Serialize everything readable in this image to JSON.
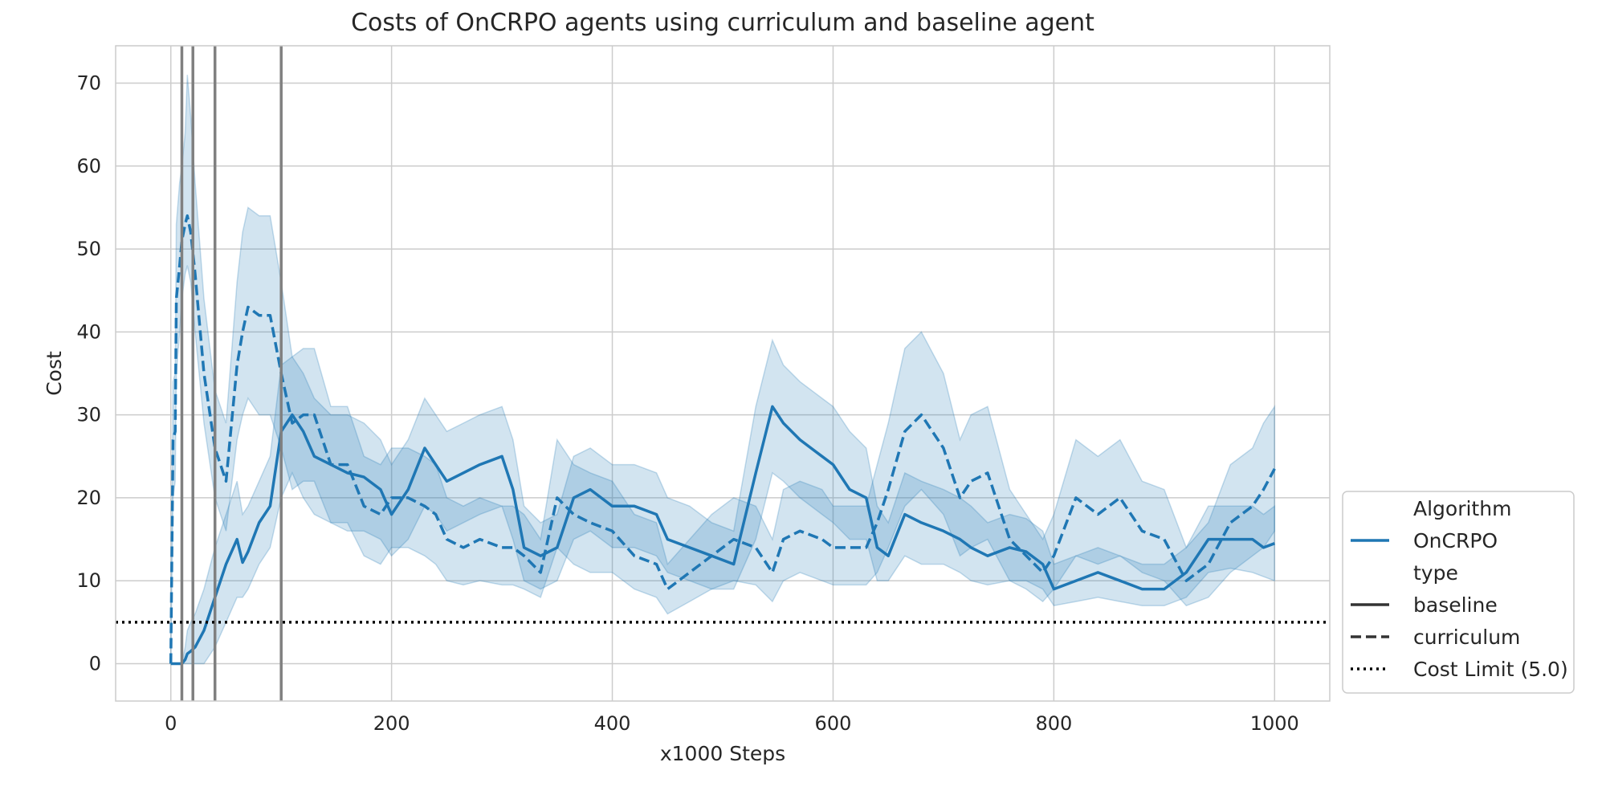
{
  "chart_data": {
    "type": "line",
    "title": "Costs of OnCRPO agents using curriculum and baseline agent",
    "xlabel": "x1000 Steps",
    "ylabel": "Cost",
    "xlim": [
      -50,
      1050
    ],
    "ylim": [
      -4.5,
      74.5
    ],
    "xticks": [
      0,
      200,
      400,
      600,
      800,
      1000
    ],
    "yticks": [
      0,
      10,
      20,
      30,
      40,
      50,
      60,
      70
    ],
    "grid": true,
    "legend_position": "lower-right",
    "colors": {
      "series": "#1f77b4",
      "band": "#1f77b4",
      "stage_line": "#808080",
      "limit": "#000000"
    },
    "stage_lines_x": [
      10,
      20,
      40,
      100
    ],
    "cost_limit": {
      "label": "Cost Limit (5.0)",
      "value": 5.0
    },
    "legend": {
      "algorithm_title": "Algorithm",
      "algorithm_entry": "OnCRPO",
      "type_title": "type",
      "baseline_label": "baseline",
      "curriculum_label": "curriculum"
    },
    "series": [
      {
        "name": "baseline",
        "style": "solid",
        "x": [
          0,
          2,
          4,
          5,
          8,
          10,
          13,
          15,
          18,
          22,
          30,
          40,
          50,
          60,
          65,
          70,
          80,
          90,
          100,
          110,
          120,
          130,
          145,
          160,
          175,
          190,
          200,
          215,
          230,
          240,
          250,
          265,
          280,
          300,
          310,
          320,
          335,
          350,
          365,
          380,
          400,
          420,
          440,
          450,
          470,
          490,
          510,
          530,
          545,
          555,
          570,
          590,
          600,
          615,
          630,
          640,
          650,
          665,
          680,
          700,
          715,
          725,
          740,
          760,
          775,
          790,
          800,
          820,
          840,
          860,
          880,
          900,
          920,
          940,
          960,
          980,
          990,
          1000
        ],
        "y": [
          0,
          0,
          0,
          0,
          0,
          0,
          0.5,
          1.2,
          1.5,
          2,
          4,
          8,
          12,
          15,
          12.2,
          13.5,
          17,
          19,
          28,
          30,
          28,
          25,
          24,
          23,
          22.5,
          21,
          18,
          21,
          26,
          24,
          22,
          23,
          24,
          25,
          21,
          14,
          13,
          14,
          20,
          21,
          19,
          19,
          18,
          15,
          14,
          13,
          12,
          23,
          31,
          29,
          27,
          25,
          24,
          21,
          20,
          14,
          13,
          18,
          17,
          16,
          15,
          14,
          13,
          14,
          13.5,
          12,
          9,
          10,
          11,
          10,
          9,
          9,
          11,
          15,
          15,
          15,
          14,
          14.5
        ],
        "lower": [
          0,
          0,
          0,
          0,
          0,
          0,
          0,
          0,
          0,
          0,
          0,
          2,
          5,
          8,
          8,
          9,
          12,
          14,
          20,
          23,
          20,
          18,
          17,
          16,
          16,
          15,
          13,
          15,
          19,
          18,
          16,
          17,
          18,
          19,
          15,
          10,
          9,
          10,
          15,
          16,
          14,
          14,
          13,
          11,
          10,
          9,
          9,
          15,
          23,
          22,
          20,
          18,
          17,
          15,
          15,
          10,
          10,
          13,
          12,
          12,
          11,
          10,
          9.5,
          10,
          10,
          9,
          7,
          7.5,
          8,
          7.5,
          7,
          7,
          8,
          11,
          11.5,
          11,
          10.5,
          10
        ],
        "upper": [
          0,
          0,
          0,
          0,
          0,
          0,
          2,
          4,
          5,
          6,
          9,
          14,
          18,
          22,
          18,
          19,
          22,
          25,
          36,
          37,
          35,
          32,
          30,
          30,
          29,
          27,
          24,
          27,
          32,
          30,
          28,
          29,
          30,
          31,
          27,
          19,
          17,
          18,
          25,
          26,
          24,
          24,
          23,
          20,
          19,
          17,
          16,
          31,
          39,
          36,
          34,
          32,
          31,
          28,
          26,
          19,
          17,
          23,
          22,
          21,
          20,
          19,
          17,
          18,
          17.5,
          16,
          12,
          13,
          14,
          13,
          12,
          12,
          14,
          19,
          19,
          19,
          18,
          19
        ]
      },
      {
        "name": "curriculum",
        "style": "dashed",
        "x": [
          0,
          2,
          4,
          5,
          8,
          10,
          13,
          15,
          18,
          22,
          30,
          40,
          50,
          60,
          65,
          70,
          80,
          90,
          100,
          110,
          120,
          130,
          145,
          160,
          175,
          190,
          200,
          215,
          230,
          240,
          250,
          265,
          280,
          300,
          310,
          320,
          335,
          350,
          365,
          380,
          400,
          420,
          440,
          450,
          470,
          490,
          510,
          530,
          545,
          555,
          570,
          590,
          600,
          615,
          630,
          640,
          650,
          665,
          680,
          700,
          715,
          725,
          740,
          760,
          775,
          790,
          800,
          820,
          840,
          860,
          880,
          900,
          920,
          940,
          960,
          980,
          990,
          1000
        ],
        "y": [
          0,
          27,
          28,
          44,
          48,
          51,
          53,
          54,
          52,
          47,
          35,
          26,
          22,
          36,
          40,
          43,
          42,
          42,
          35,
          29,
          30,
          30,
          24,
          24,
          19,
          18,
          20,
          20,
          19,
          18,
          15,
          14,
          15,
          14,
          14,
          13,
          11,
          20,
          18,
          17,
          16,
          13,
          12,
          9,
          11,
          13,
          15,
          14,
          11,
          15,
          16,
          15,
          14,
          14,
          14,
          17,
          21,
          28,
          30,
          26,
          20,
          22,
          23,
          15,
          13,
          11,
          13,
          20,
          18,
          20,
          16,
          15,
          10,
          12,
          17,
          19,
          21,
          23.5
        ],
        "lower": [
          0,
          20,
          22,
          35,
          40,
          44,
          47,
          48,
          46,
          40,
          29,
          20,
          16,
          27,
          30,
          32,
          30,
          30,
          26,
          21,
          22,
          22,
          17,
          17,
          13,
          12,
          14,
          14,
          13,
          12,
          10,
          9.5,
          10,
          9.5,
          9.5,
          9,
          8,
          14,
          12,
          11,
          11,
          9,
          8,
          6,
          7.5,
          9,
          10,
          9.5,
          7.5,
          10,
          11,
          10,
          9.5,
          9.5,
          9.5,
          11,
          14,
          19,
          21,
          18,
          13,
          14,
          15,
          10,
          9,
          7.5,
          9,
          13,
          12,
          13,
          11,
          10,
          7,
          8,
          11,
          13,
          14,
          16
        ],
        "upper": [
          0,
          34,
          35,
          53,
          58,
          60,
          64,
          71,
          66,
          58,
          44,
          33,
          29,
          46,
          52,
          55,
          54,
          54,
          46,
          37,
          38,
          38,
          31,
          31,
          25,
          24,
          26,
          26,
          25,
          24,
          20,
          19,
          20,
          19,
          19,
          18,
          15,
          27,
          24,
          23,
          22,
          18,
          17,
          12,
          15,
          18,
          20,
          19,
          15,
          21,
          22,
          21,
          19,
          19,
          19,
          24,
          29,
          38,
          40,
          35,
          27,
          30,
          31,
          21,
          18,
          15,
          18,
          27,
          25,
          27,
          22,
          21,
          14,
          17,
          24,
          26,
          29,
          31
        ]
      }
    ]
  }
}
